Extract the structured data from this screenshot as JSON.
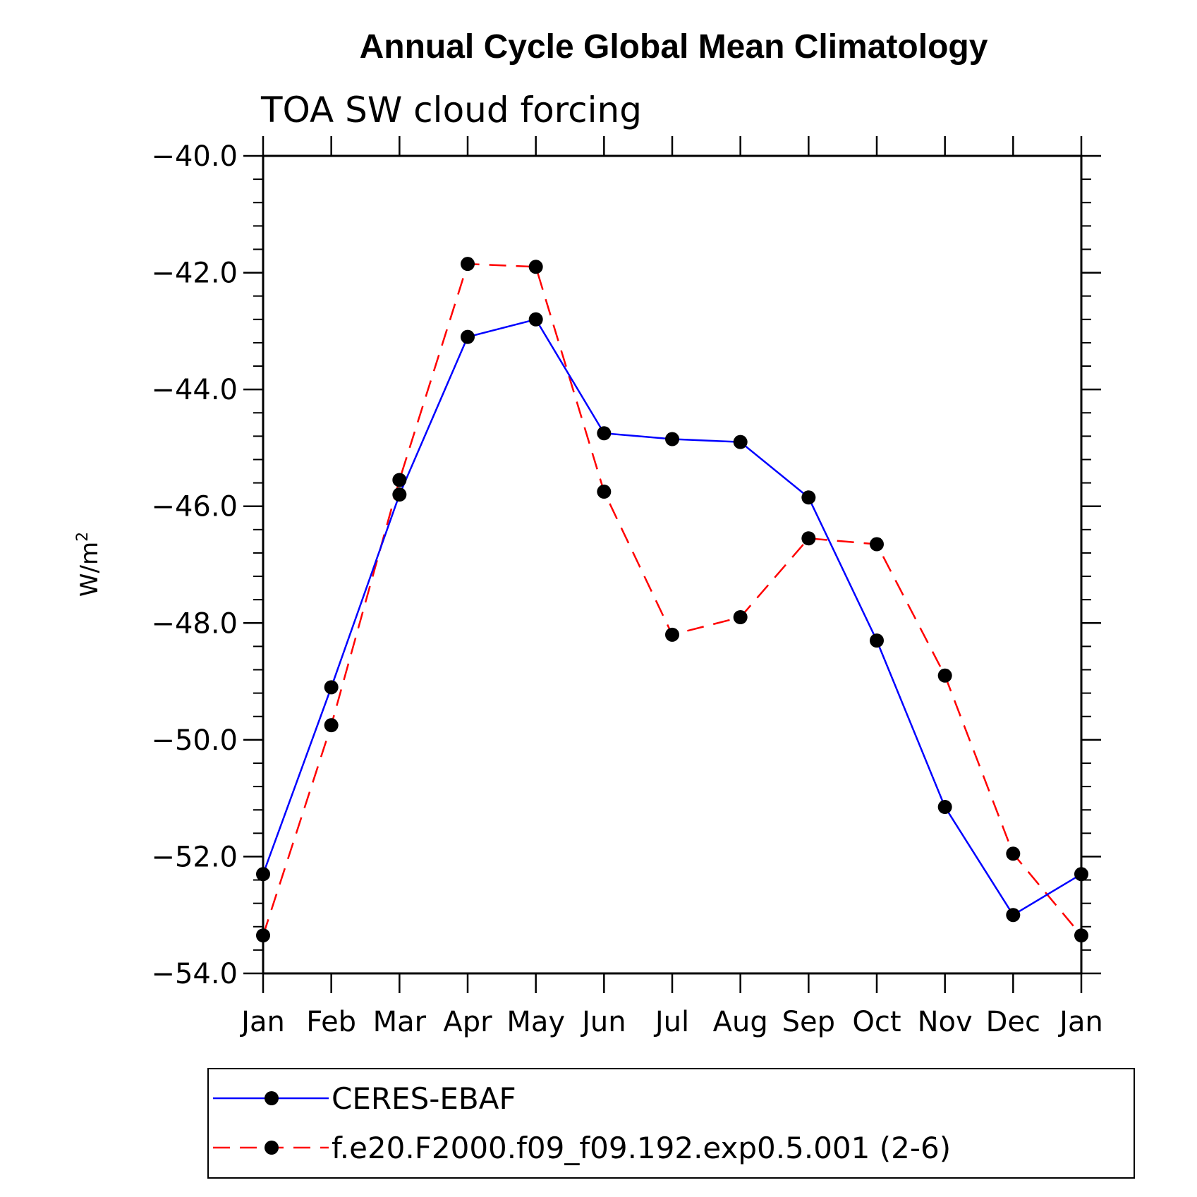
{
  "chart_data": {
    "type": "line",
    "title": "Annual Cycle Global Mean Climatology",
    "subtitle": "TOA SW cloud forcing",
    "ylabel": "W/m",
    "ylabel_superscript": "2",
    "xlabel": "",
    "categories": [
      "Jan",
      "Feb",
      "Mar",
      "Apr",
      "May",
      "Jun",
      "Jul",
      "Aug",
      "Sep",
      "Oct",
      "Nov",
      "Dec",
      "Jan"
    ],
    "ylim": [
      -54.0,
      -40.0
    ],
    "yticks": [
      "-40.0",
      "-42.0",
      "-44.0",
      "-46.0",
      "-48.0",
      "-50.0",
      "-52.0",
      "-54.0"
    ],
    "ytick_values": [
      -40,
      -42,
      -44,
      -46,
      -48,
      -50,
      -52,
      -54
    ],
    "grid": false,
    "legend_position": "bottom",
    "series": [
      {
        "name": "CERES-EBAF",
        "color": "#0000ff",
        "dash": "solid",
        "marker": "circle",
        "values": [
          -52.3,
          -49.1,
          -45.8,
          -43.1,
          -42.8,
          -44.75,
          -44.85,
          -44.9,
          -45.85,
          -48.3,
          -51.15,
          -53.0,
          -52.3
        ]
      },
      {
        "name": "f.e20.F2000.f09_f09.192.exp0.5.001 (2-6)",
        "color": "#ff0000",
        "dash": "dashed",
        "marker": "circle",
        "values": [
          -53.35,
          -49.75,
          -45.55,
          -41.85,
          -41.9,
          -45.75,
          -48.2,
          -47.9,
          -46.55,
          -46.65,
          -48.9,
          -51.95,
          -53.35
        ]
      }
    ]
  }
}
